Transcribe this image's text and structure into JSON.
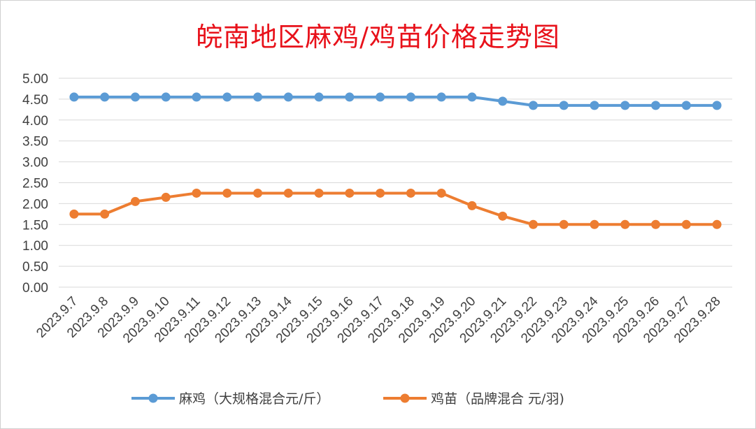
{
  "chart_data": {
    "type": "line",
    "title": "皖南地区麻鸡/鸡苗价格走势图",
    "categories": [
      "2023.9.7",
      "2023.9.8",
      "2023.9.9",
      "2023.9.10",
      "2023.9.11",
      "2023.9.12",
      "2023.9.13",
      "2023.9.14",
      "2023.9.15",
      "2023.9.16",
      "2023.9.17",
      "2023.9.18",
      "2023.9.19",
      "2023.9.20",
      "2023.9.21",
      "2023.9.22",
      "2023.9.23",
      "2023.9.24",
      "2023.9.25",
      "2023.9.26",
      "2023.9.27",
      "2023.9.28"
    ],
    "series": [
      {
        "name": "麻鸡（大规格混合元/斤）",
        "color": "#5b9bd5",
        "values": [
          4.55,
          4.55,
          4.55,
          4.55,
          4.55,
          4.55,
          4.55,
          4.55,
          4.55,
          4.55,
          4.55,
          4.55,
          4.55,
          4.55,
          4.45,
          4.35,
          4.35,
          4.35,
          4.35,
          4.35,
          4.35,
          4.35
        ]
      },
      {
        "name": "鸡苗（品牌混合 元/羽)",
        "color": "#ed7d31",
        "values": [
          1.75,
          1.75,
          2.05,
          2.15,
          2.25,
          2.25,
          2.25,
          2.25,
          2.25,
          2.25,
          2.25,
          2.25,
          2.25,
          1.95,
          1.7,
          1.5,
          1.5,
          1.5,
          1.5,
          1.5,
          1.5,
          1.5
        ]
      }
    ],
    "yticks": [
      "0.00",
      "0.50",
      "1.00",
      "1.50",
      "2.00",
      "2.50",
      "3.00",
      "3.50",
      "4.00",
      "4.50",
      "5.00"
    ],
    "ylim": [
      0,
      5
    ],
    "grid": true,
    "legend": "bottom"
  }
}
